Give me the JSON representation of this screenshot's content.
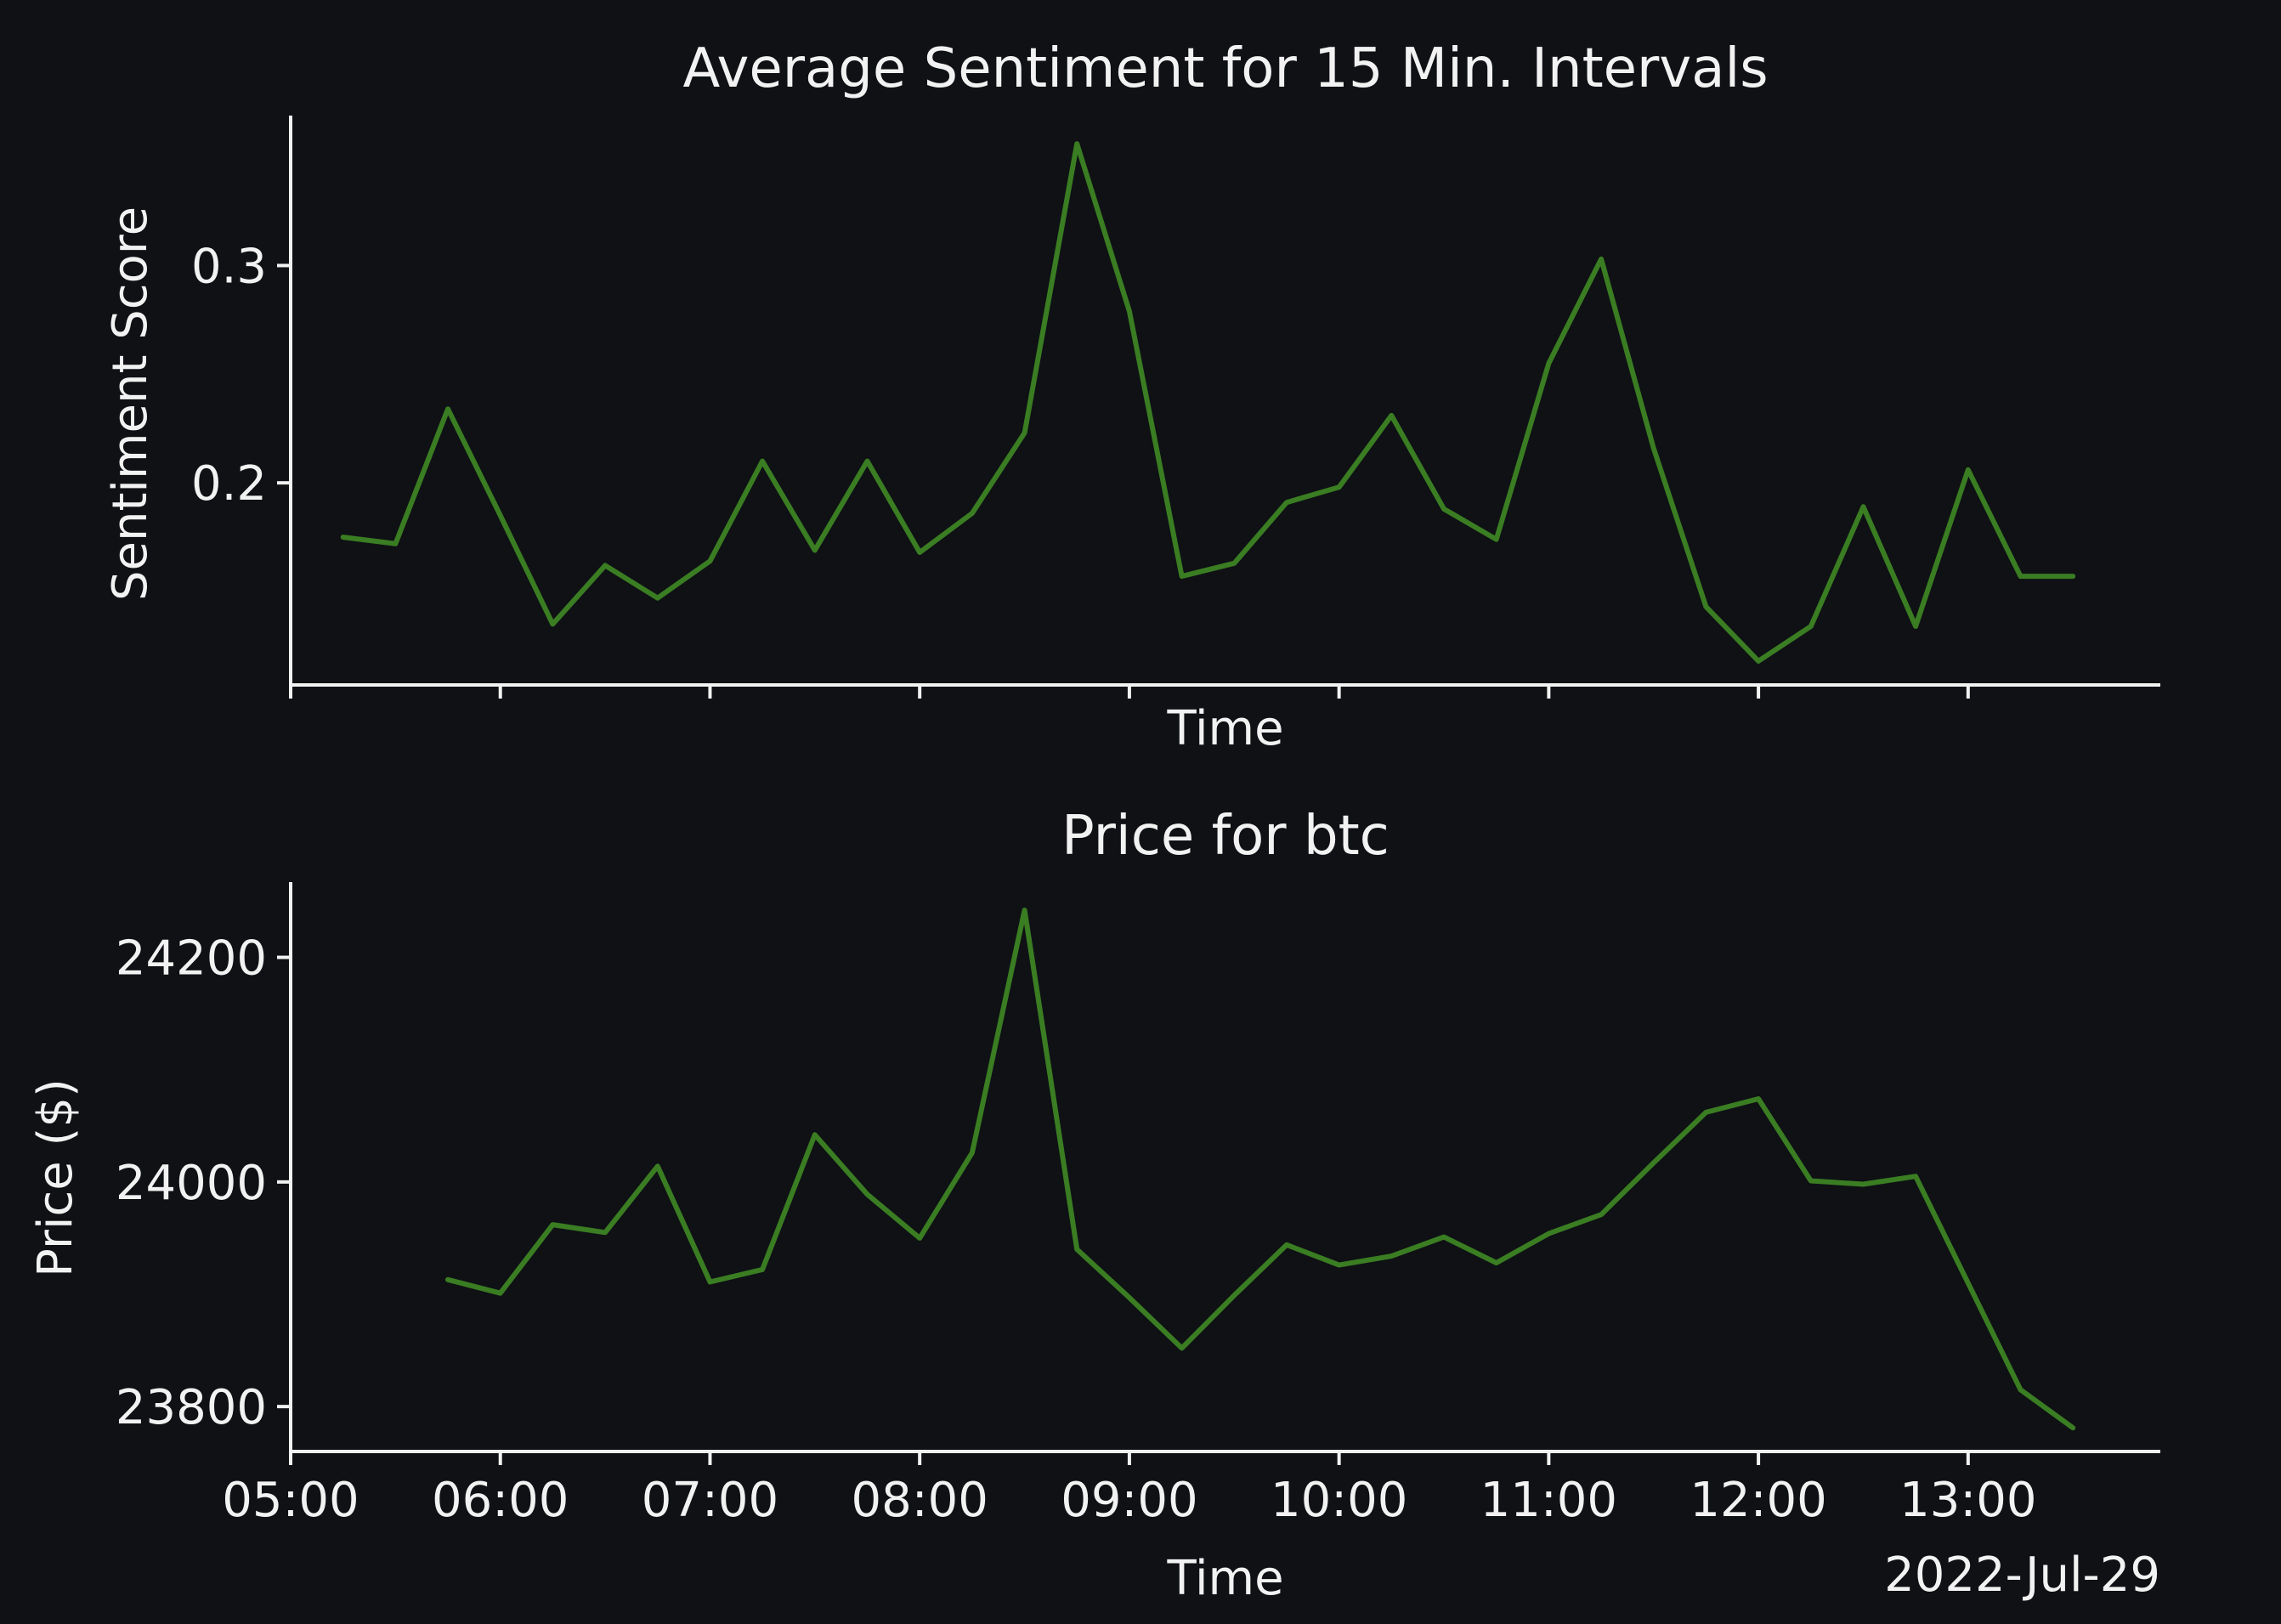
{
  "colors": {
    "background": "#0f1115",
    "foreground": "#f2f2f2",
    "series": "#3a7d22"
  },
  "chart_data": [
    {
      "type": "line",
      "title": "Average Sentiment for 15 Min. Intervals",
      "xlabel": "Time",
      "ylabel": "Sentiment Score",
      "xlim": [
        "05:00",
        "13:55"
      ],
      "ylim": [
        0.107,
        0.369
      ],
      "y_ticks": [
        0.2,
        0.3
      ],
      "y_tick_labels": [
        "0.2",
        "0.3"
      ],
      "x_ticks": [
        "05:00",
        "06:00",
        "07:00",
        "08:00",
        "09:00",
        "10:00",
        "11:00",
        "12:00",
        "13:00"
      ],
      "show_x_tick_labels": false,
      "grid": false,
      "x": [
        "05:15",
        "05:30",
        "05:45",
        "06:00",
        "06:15",
        "06:30",
        "06:45",
        "07:00",
        "07:15",
        "07:30",
        "07:45",
        "08:00",
        "08:15",
        "08:30",
        "08:45",
        "09:00",
        "09:15",
        "09:30",
        "09:45",
        "10:00",
        "10:15",
        "10:30",
        "10:45",
        "11:00",
        "11:15",
        "11:30",
        "11:45",
        "12:00",
        "12:15",
        "12:30",
        "12:45",
        "13:00",
        "13:15",
        "13:30"
      ],
      "values": [
        0.175,
        0.172,
        0.234,
        0.185,
        0.135,
        0.162,
        0.147,
        0.164,
        0.21,
        0.169,
        0.21,
        0.168,
        0.186,
        0.223,
        0.356,
        0.279,
        0.157,
        0.163,
        0.191,
        0.198,
        0.231,
        0.188,
        0.174,
        0.255,
        0.303,
        0.216,
        0.143,
        0.118,
        0.134,
        0.189,
        0.134,
        0.206,
        0.157,
        0.157
      ]
    },
    {
      "type": "line",
      "title": "Price for btc",
      "xlabel": "Time",
      "ylabel": "Price ($)",
      "xlim": [
        "05:00",
        "13:55"
      ],
      "ylim": [
        23760,
        24267
      ],
      "y_ticks": [
        23800,
        24000,
        24200
      ],
      "y_tick_labels": [
        "23800",
        "24000",
        "24200"
      ],
      "x_ticks": [
        "05:00",
        "06:00",
        "07:00",
        "08:00",
        "09:00",
        "10:00",
        "11:00",
        "12:00",
        "13:00"
      ],
      "x_tick_labels": [
        "05:00",
        "06:00",
        "07:00",
        "08:00",
        "09:00",
        "10:00",
        "11:00",
        "12:00",
        "13:00"
      ],
      "show_x_tick_labels": true,
      "date_label": "2022-Jul-29",
      "grid": false,
      "x": [
        "05:45",
        "06:00",
        "06:15",
        "06:30",
        "06:45",
        "07:00",
        "07:15",
        "07:30",
        "07:45",
        "08:00",
        "08:15",
        "08:30",
        "08:45",
        "09:00",
        "09:15",
        "09:30",
        "09:45",
        "10:00",
        "10:15",
        "10:30",
        "10:45",
        "11:00",
        "11:15",
        "11:30",
        "11:45",
        "12:00",
        "12:15",
        "12:30",
        "12:45",
        "13:00",
        "13:15",
        "13:30"
      ],
      "values": [
        23913,
        23901,
        23962,
        23955,
        24014,
        23911,
        23922,
        24042,
        23989,
        23950,
        24026,
        24242,
        23940,
        23897,
        23852,
        23899,
        23944,
        23926,
        23934,
        23951,
        23928,
        23954,
        23971,
        24017,
        24062,
        24074,
        24001,
        23998,
        24005,
        23910,
        23815,
        23781
      ]
    }
  ]
}
